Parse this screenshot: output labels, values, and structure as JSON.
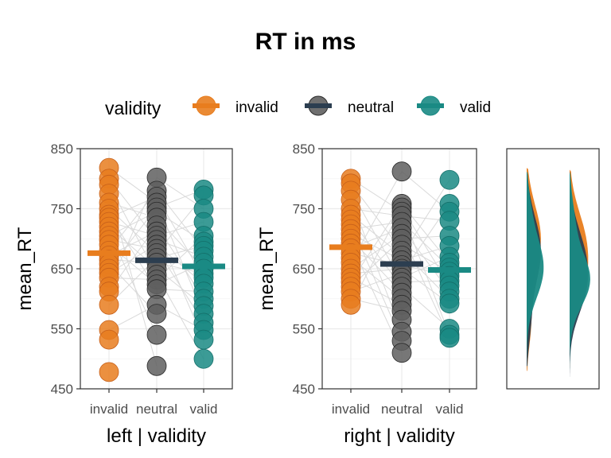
{
  "chart_data": [
    {
      "type": "scatter",
      "panel": "left",
      "title": "RT in ms",
      "xlabel": "left | validity",
      "ylabel": "mean_RT",
      "categories": [
        "invalid",
        "neutral",
        "valid"
      ],
      "ylim": [
        450,
        850
      ],
      "yticks": [
        450,
        550,
        650,
        750,
        850
      ],
      "grid": true,
      "paired_lines": true,
      "series": [
        {
          "name": "invalid",
          "mean": 676,
          "values": [
            818,
            800,
            790,
            775,
            760,
            750,
            740,
            735,
            728,
            720,
            712,
            705,
            698,
            690,
            680,
            672,
            665,
            658,
            650,
            643,
            635,
            620,
            612,
            590,
            548,
            532,
            478
          ]
        },
        {
          "name": "neutral",
          "mean": 664,
          "values": [
            802,
            780,
            770,
            760,
            752,
            745,
            735,
            722,
            712,
            705,
            698,
            690,
            683,
            676,
            668,
            660,
            650,
            640,
            632,
            624,
            616,
            590,
            575,
            540,
            488
          ]
        },
        {
          "name": "valid",
          "mean": 654,
          "values": [
            782,
            772,
            750,
            728,
            705,
            695,
            688,
            680,
            670,
            660,
            650,
            642,
            635,
            625,
            612,
            600,
            588,
            575,
            560,
            548,
            532,
            500
          ]
        }
      ]
    },
    {
      "type": "scatter",
      "panel": "right",
      "xlabel": "right | validity",
      "ylabel": "mean_RT",
      "categories": [
        "invalid",
        "neutral",
        "valid"
      ],
      "ylim": [
        450,
        850
      ],
      "yticks": [
        450,
        550,
        650,
        750,
        850
      ],
      "grid": true,
      "paired_lines": true,
      "series": [
        {
          "name": "invalid",
          "mean": 686,
          "values": [
            800,
            792,
            780,
            765,
            750,
            740,
            732,
            724,
            716,
            708,
            700,
            692,
            684,
            676,
            668,
            660,
            650,
            642,
            635,
            628,
            620,
            612,
            600,
            590
          ]
        },
        {
          "name": "neutral",
          "mean": 658,
          "values": [
            812,
            758,
            752,
            745,
            738,
            728,
            718,
            708,
            700,
            690,
            680,
            672,
            664,
            656,
            650,
            642,
            635,
            628,
            620,
            610,
            600,
            590,
            580,
            565,
            545,
            530,
            510
          ]
        },
        {
          "name": "valid",
          "mean": 648,
          "values": [
            798,
            758,
            745,
            730,
            705,
            688,
            670,
            660,
            652,
            645,
            638,
            630,
            622,
            612,
            600,
            592,
            550,
            540,
            535
          ]
        }
      ]
    },
    {
      "type": "area",
      "panel": "density",
      "ylim": [
        450,
        850
      ],
      "note_groups": [
        "left",
        "right"
      ],
      "series_colors": [
        "#e87d1e",
        "#2c3e50",
        "#1a8a84"
      ]
    }
  ],
  "legend": {
    "title": "validity",
    "placement": "top",
    "items": [
      {
        "label": "invalid",
        "color": "#e87d1e",
        "point_fill": "#e87d1e"
      },
      {
        "label": "neutral",
        "color": "#2c3e50",
        "point_fill": "#5f5f5f"
      },
      {
        "label": "valid",
        "color": "#1a8a84",
        "point_fill": "#1a8a84"
      }
    ]
  },
  "colors": {
    "invalid": "#e87d1e",
    "neutral": "#2c3e50",
    "valid": "#1a8a84",
    "neutral_point": "#5f5f5f",
    "grid": "#ebebeb",
    "pair_line": "#d9d9d9"
  }
}
